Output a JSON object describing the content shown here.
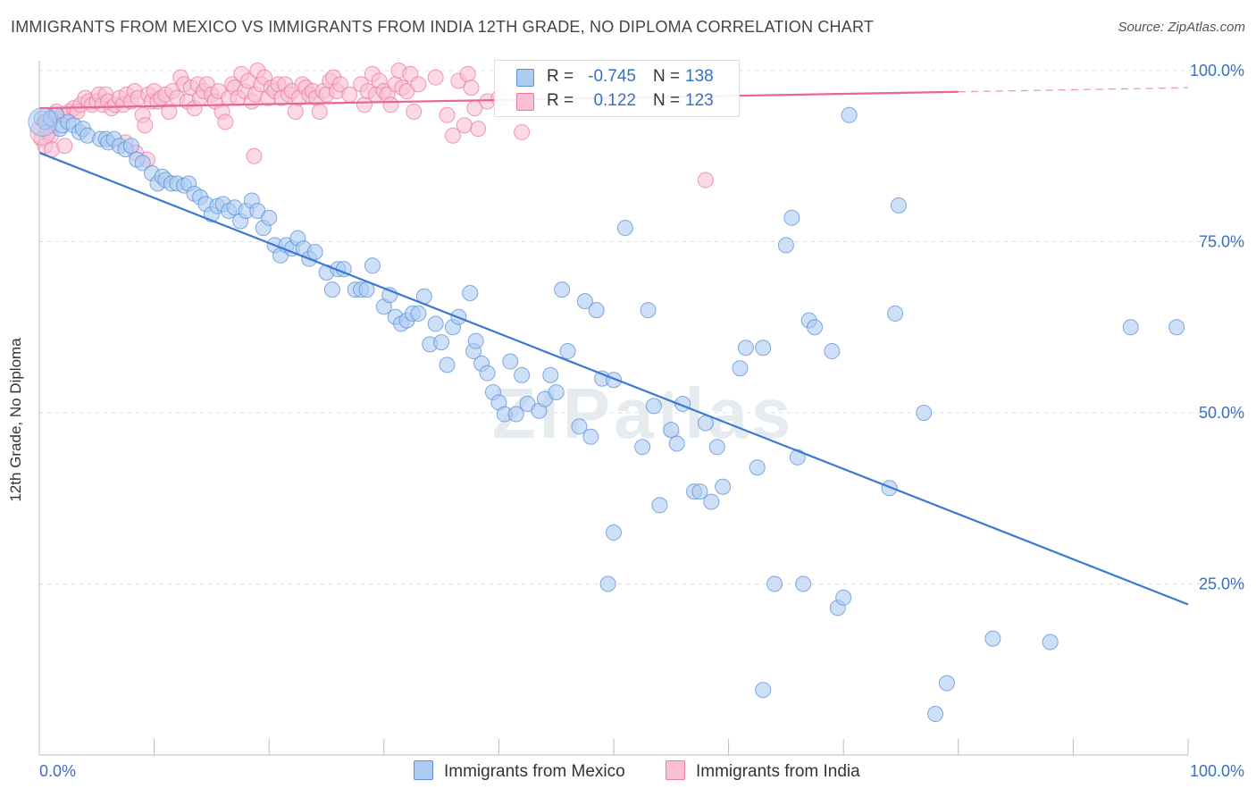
{
  "title": "IMMIGRANTS FROM MEXICO VS IMMIGRANTS FROM INDIA 12TH GRADE, NO DIPLOMA CORRELATION CHART",
  "source": "Source: ZipAtlas.com",
  "watermark": "ZIPatlas",
  "legend": {
    "rows": [
      {
        "r_label": "R =",
        "r_value": "-0.745",
        "n_label": "N =",
        "n_value": "138",
        "fill": "#aecbf2",
        "stroke": "#5b8fd6"
      },
      {
        "r_label": "R =",
        "r_value": "0.122",
        "n_label": "N =",
        "n_value": "123",
        "fill": "#f9c0d3",
        "stroke": "#e87aa0"
      }
    ]
  },
  "chart_data": {
    "type": "scatter",
    "title": "IMMIGRANTS FROM MEXICO VS IMMIGRANTS FROM INDIA 12TH GRADE, NO DIPLOMA CORRELATION CHART",
    "xlabel": "",
    "ylabel": "12th Grade, No Diploma",
    "xlim": [
      0,
      100
    ],
    "ylim": [
      0,
      100
    ],
    "x_tick_labels": [
      "0.0%",
      "100.0%"
    ],
    "y_tick_labels": [
      "100.0%",
      "75.0%",
      "50.0%",
      "25.0%"
    ],
    "y_tick_values": [
      100,
      75,
      50,
      25
    ],
    "grid": true,
    "series": [
      {
        "name": "Immigrants from Mexico",
        "color": "#5b8fd6",
        "fill": "#aecbf2",
        "line_color": "#3a78d4",
        "r": -0.745,
        "n": 138,
        "trend": {
          "x": [
            0,
            100
          ],
          "y": [
            88.0,
            22.0
          ],
          "dashed_from": null
        },
        "points": [
          [
            0.2,
            93.0
          ],
          [
            0.5,
            92.5
          ],
          [
            1,
            93
          ],
          [
            1.5,
            93.5
          ],
          [
            1.8,
            91.5
          ],
          [
            2,
            92
          ],
          [
            2.5,
            92.5
          ],
          [
            3,
            92
          ],
          [
            3.5,
            91
          ],
          [
            3.8,
            91.5
          ],
          [
            4.2,
            90.5
          ],
          [
            5.3,
            90.0
          ],
          [
            5.8,
            90.0
          ],
          [
            6.0,
            89.5
          ],
          [
            6.5,
            90
          ],
          [
            7,
            89
          ],
          [
            7.5,
            88.5
          ],
          [
            8,
            89
          ],
          [
            8.5,
            87
          ],
          [
            9,
            86.5
          ],
          [
            9.8,
            85
          ],
          [
            10.3,
            83.5
          ],
          [
            10.7,
            84.5
          ],
          [
            11,
            84
          ],
          [
            11.5,
            83.5
          ],
          [
            12,
            83.5
          ],
          [
            12.6,
            83.2
          ],
          [
            13,
            83.5
          ],
          [
            13.5,
            82
          ],
          [
            14,
            81.5
          ],
          [
            14.5,
            80.5
          ],
          [
            15,
            79
          ],
          [
            15.5,
            80.2
          ],
          [
            16,
            80.5
          ],
          [
            16.5,
            79.5
          ],
          [
            17,
            80
          ],
          [
            17.5,
            78
          ],
          [
            18,
            79.5
          ],
          [
            18.5,
            81
          ],
          [
            19,
            79.5
          ],
          [
            19.5,
            77
          ],
          [
            20,
            78.5
          ],
          [
            20.5,
            74.5
          ],
          [
            21,
            73
          ],
          [
            21.5,
            74.5
          ],
          [
            22,
            74
          ],
          [
            22.5,
            75.5
          ],
          [
            23,
            74
          ],
          [
            23.5,
            72.5
          ],
          [
            24,
            73.5
          ],
          [
            25,
            70.5
          ],
          [
            25.5,
            68
          ],
          [
            26,
            71
          ],
          [
            26.5,
            71
          ],
          [
            27.5,
            68
          ],
          [
            28,
            68
          ],
          [
            28.5,
            68
          ],
          [
            29,
            71.5
          ],
          [
            30,
            65.5
          ],
          [
            30.5,
            67.2
          ],
          [
            31,
            64
          ],
          [
            31.5,
            63
          ],
          [
            32,
            63.5
          ],
          [
            32.5,
            64.5
          ],
          [
            33,
            64.5
          ],
          [
            33.5,
            67
          ],
          [
            34,
            60
          ],
          [
            34.5,
            63
          ],
          [
            35,
            60.3
          ],
          [
            35.5,
            57
          ],
          [
            36,
            62.5
          ],
          [
            36.5,
            64
          ],
          [
            37.5,
            67.5
          ],
          [
            37.8,
            59
          ],
          [
            38,
            60.5
          ],
          [
            38.5,
            57.2
          ],
          [
            39,
            55.8
          ],
          [
            39.5,
            53
          ],
          [
            40,
            51.5
          ],
          [
            40.5,
            49.8
          ],
          [
            41,
            57.5
          ],
          [
            41.5,
            49.8
          ],
          [
            42,
            55.5
          ],
          [
            42.5,
            51.3
          ],
          [
            43.5,
            50.3
          ],
          [
            44,
            52
          ],
          [
            44.5,
            55.5
          ],
          [
            45,
            53
          ],
          [
            45.5,
            68
          ],
          [
            46,
            59
          ],
          [
            47,
            48
          ],
          [
            47.5,
            66.3
          ],
          [
            48,
            46.5
          ],
          [
            48.5,
            65
          ],
          [
            49,
            55
          ],
          [
            50,
            54.8
          ],
          [
            52.5,
            45
          ],
          [
            53,
            65
          ],
          [
            53.5,
            51
          ],
          [
            54,
            36.5
          ],
          [
            55,
            47.5
          ],
          [
            55.5,
            45.5
          ],
          [
            56,
            51.3
          ],
          [
            57,
            38.5
          ],
          [
            57.5,
            38.5
          ],
          [
            58,
            48.5
          ],
          [
            58.5,
            37
          ],
          [
            59,
            45
          ],
          [
            59.5,
            39.2
          ],
          [
            61,
            56.5
          ],
          [
            61.5,
            59.5
          ],
          [
            62.5,
            42
          ],
          [
            63,
            59.5
          ],
          [
            51,
            77
          ],
          [
            50,
            32.5
          ],
          [
            49.5,
            25
          ],
          [
            63,
            9.5
          ],
          [
            64,
            25
          ],
          [
            65,
            74.5
          ],
          [
            65.5,
            78.5
          ],
          [
            66,
            43.5
          ],
          [
            66.5,
            25
          ],
          [
            67,
            63.5
          ],
          [
            67.5,
            62.5
          ],
          [
            69,
            59
          ],
          [
            69.5,
            21.5
          ],
          [
            70,
            23
          ],
          [
            70.5,
            93.5
          ],
          [
            74,
            39
          ],
          [
            74.5,
            64.5
          ],
          [
            74.8,
            80.3
          ],
          [
            77,
            50
          ],
          [
            78,
            6
          ],
          [
            79,
            10.5
          ],
          [
            83,
            17
          ],
          [
            88,
            16.5
          ],
          [
            95,
            62.5
          ],
          [
            99,
            62.5
          ]
        ]
      },
      {
        "name": "Immigrants from India",
        "color": "#e87aa0",
        "fill": "#f9c0d3",
        "line_color": "#e8668f",
        "r": 0.122,
        "n": 123,
        "trend": {
          "x": [
            0,
            100
          ],
          "y": [
            94.5,
            97.5
          ],
          "dashed_from": 80
        },
        "points": [
          [
            0.2,
            90
          ],
          [
            0.5,
            89
          ],
          [
            0.8,
            91
          ],
          [
            1,
            90.5
          ],
          [
            1.2,
            93.5
          ],
          [
            1.5,
            94
          ],
          [
            2,
            93.5
          ],
          [
            2.3,
            93.5
          ],
          [
            2.6,
            94
          ],
          [
            3,
            94.5
          ],
          [
            3.3,
            94
          ],
          [
            3.6,
            95
          ],
          [
            4,
            96
          ],
          [
            4.3,
            95.5
          ],
          [
            4.6,
            95
          ],
          [
            5,
            95.5
          ],
          [
            5.2,
            96.5
          ],
          [
            5.5,
            95
          ],
          [
            5.8,
            96.5
          ],
          [
            6,
            95.5
          ],
          [
            6.3,
            94.5
          ],
          [
            6.6,
            95
          ],
          [
            7,
            96
          ],
          [
            7.3,
            95
          ],
          [
            7.6,
            96.5
          ],
          [
            8,
            95.5
          ],
          [
            8.3,
            97
          ],
          [
            8.6,
            96
          ],
          [
            9,
            93.5
          ],
          [
            9.2,
            92
          ],
          [
            9.5,
            96.5
          ],
          [
            9.8,
            95.5
          ],
          [
            10,
            97
          ],
          [
            10.3,
            95.5
          ],
          [
            10.6,
            96
          ],
          [
            11,
            96.5
          ],
          [
            11.3,
            94
          ],
          [
            11.6,
            97
          ],
          [
            12,
            96
          ],
          [
            12.3,
            99
          ],
          [
            12.6,
            98
          ],
          [
            12.9,
            95.5
          ],
          [
            13.2,
            97.5
          ],
          [
            13.5,
            94.5
          ],
          [
            13.8,
            98
          ],
          [
            14,
            96
          ],
          [
            14.3,
            97
          ],
          [
            14.6,
            98
          ],
          [
            15,
            96.5
          ],
          [
            15.3,
            95.5
          ],
          [
            15.6,
            97
          ],
          [
            15.9,
            94
          ],
          [
            16.2,
            92.5
          ],
          [
            16.5,
            96
          ],
          [
            16.8,
            98
          ],
          [
            17,
            97.5
          ],
          [
            17.3,
            96
          ],
          [
            17.6,
            99.5
          ],
          [
            17.9,
            97
          ],
          [
            18.2,
            98.5
          ],
          [
            18.5,
            95.5
          ],
          [
            18.8,
            96.5
          ],
          [
            19,
            100
          ],
          [
            19.3,
            98
          ],
          [
            19.6,
            99
          ],
          [
            19.9,
            96
          ],
          [
            20.2,
            97.5
          ],
          [
            20.5,
            97
          ],
          [
            20.8,
            98
          ],
          [
            21.1,
            96
          ],
          [
            21.4,
            98
          ],
          [
            21.7,
            96.5
          ],
          [
            22,
            97
          ],
          [
            22.3,
            94
          ],
          [
            22.6,
            96
          ],
          [
            22.9,
            98
          ],
          [
            23.2,
            97.5
          ],
          [
            23.5,
            96.5
          ],
          [
            23.8,
            97
          ],
          [
            24.1,
            96
          ],
          [
            24.4,
            94
          ],
          [
            24.7,
            97
          ],
          [
            25,
            96.5
          ],
          [
            25.3,
            98.5
          ],
          [
            25.6,
            99
          ],
          [
            25.9,
            97
          ],
          [
            26.2,
            98
          ],
          [
            27,
            96.5
          ],
          [
            28,
            98
          ],
          [
            28.3,
            95
          ],
          [
            28.6,
            97
          ],
          [
            29,
            99.5
          ],
          [
            29.3,
            96.5
          ],
          [
            29.6,
            98.5
          ],
          [
            30,
            97
          ],
          [
            30.3,
            96.5
          ],
          [
            30.6,
            95
          ],
          [
            31,
            98
          ],
          [
            31.3,
            100
          ],
          [
            31.6,
            97.5
          ],
          [
            32,
            97
          ],
          [
            32.3,
            99.5
          ],
          [
            32.6,
            94
          ],
          [
            33,
            98
          ],
          [
            34.5,
            99
          ],
          [
            35.5,
            93.5
          ],
          [
            36,
            90.5
          ],
          [
            36.5,
            98.5
          ],
          [
            37,
            92
          ],
          [
            37.3,
            99.5
          ],
          [
            37.6,
            97.5
          ],
          [
            37.9,
            94.5
          ],
          [
            38.2,
            91.5
          ],
          [
            39,
            95.5
          ],
          [
            40,
            96
          ],
          [
            8.4,
            88
          ],
          [
            9.4,
            87
          ],
          [
            18.7,
            87.5
          ],
          [
            7.5,
            89.5
          ],
          [
            1.1,
            88.5
          ],
          [
            2.2,
            89
          ],
          [
            42,
            91
          ],
          [
            58,
            84
          ]
        ]
      }
    ]
  },
  "bottom_legend": [
    "Immigrants from Mexico",
    "Immigrants from India"
  ]
}
